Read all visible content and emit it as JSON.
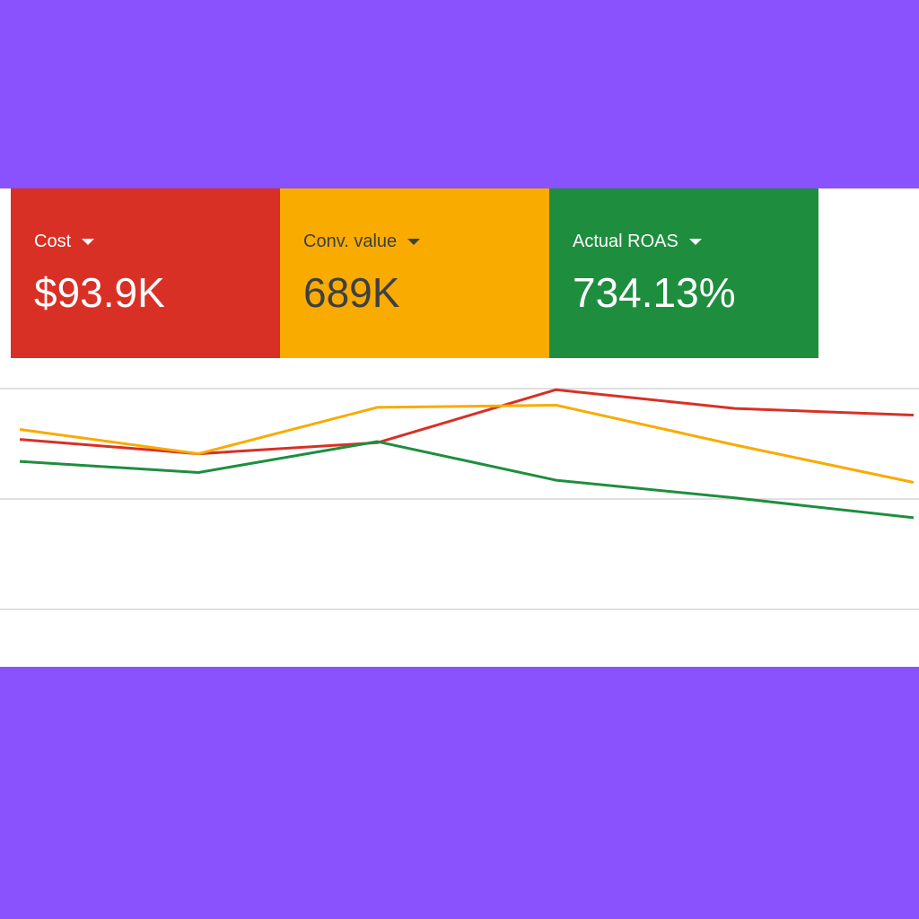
{
  "metrics": [
    {
      "label": "Cost",
      "value": "$93.9K",
      "color": "#d93025",
      "text_color": "#ffffff"
    },
    {
      "label": "Conv. value",
      "value": "689K",
      "color": "#f9ab00",
      "text_color": "#3c4043"
    },
    {
      "label": "Actual ROAS",
      "value": "734.13%",
      "color": "#1e8e3e",
      "text_color": "#ffffff"
    }
  ],
  "chart": {
    "type": "line",
    "ylim": [
      0,
      2
    ],
    "yticks": [
      0,
      1,
      2
    ],
    "grid": true,
    "series": [
      {
        "color": "#d93025",
        "values": [
          1.54,
          1.41,
          1.51,
          1.99,
          1.82,
          1.76
        ]
      },
      {
        "color": "#f9ab00",
        "values": [
          1.63,
          1.41,
          1.83,
          1.85,
          1.49,
          1.15
        ]
      },
      {
        "color": "#1e8e3e",
        "values": [
          1.34,
          1.24,
          1.52,
          1.17,
          1.01,
          0.83
        ]
      }
    ]
  }
}
